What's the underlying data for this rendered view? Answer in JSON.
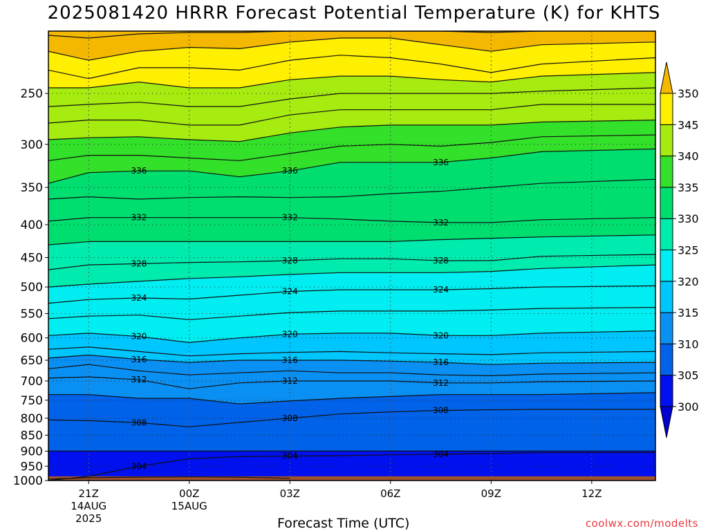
{
  "chart_data": {
    "type": "contour",
    "title": "2025081420 HRRR Forecast Potential Temperature (K) for KHTS",
    "xlabel": "Forecast Time (UTC)",
    "ylabel": "",
    "y_scale": "log-pressure",
    "y_range_hPa": [
      200,
      1000
    ],
    "y_ticks": [
      250,
      300,
      350,
      400,
      450,
      500,
      550,
      600,
      650,
      700,
      750,
      800,
      850,
      900,
      950,
      1000
    ],
    "x_range_hours": [
      -0.2,
      17.9
    ],
    "x_ticks": [
      {
        "hour": 1,
        "label": "21Z",
        "date": "14AUG",
        "year": "2025"
      },
      {
        "hour": 4,
        "label": "00Z",
        "date": "15AUG",
        "year": ""
      },
      {
        "hour": 7,
        "label": "03Z",
        "date": "",
        "year": ""
      },
      {
        "hour": 10,
        "label": "06Z",
        "date": "",
        "year": ""
      },
      {
        "hour": 13,
        "label": "09Z",
        "date": "",
        "year": ""
      },
      {
        "hour": 16,
        "label": "12Z",
        "date": "",
        "year": ""
      }
    ],
    "grid": true,
    "ground_below_hPa": 985,
    "colorbar": {
      "levels": [
        300,
        305,
        310,
        315,
        320,
        325,
        330,
        335,
        340,
        345,
        350
      ],
      "colors": [
        "#0010ee",
        "#0062e8",
        "#0a8ff2",
        "#00c6ff",
        "#00eef2",
        "#00ecae",
        "#00de70",
        "#33e02a",
        "#a6ec10",
        "#ffef00"
      ],
      "under_color": "#0000d0",
      "over_color": "#f5b800"
    },
    "contours": [
      {
        "level": 302,
        "pressure": [
          995,
          990,
          988,
          987,
          988,
          992
        ],
        "label": ""
      },
      {
        "level": 304,
        "pressure": [
          1000,
          985,
          950,
          925,
          918,
          916,
          915,
          912,
          910,
          908,
          905,
          905
        ],
        "label": "304"
      },
      {
        "level": 306,
        "pressure": [
          900,
          900,
          900,
          900,
          900,
          900,
          900,
          900,
          900,
          900,
          900,
          900
        ],
        "label": ""
      },
      {
        "level": 308,
        "pressure": [
          805,
          807,
          813,
          825,
          812,
          800,
          788,
          782,
          778,
          776,
          775,
          775
        ],
        "label": "308"
      },
      {
        "level": 310,
        "pressure": [
          735,
          735,
          745,
          745,
          760,
          752,
          745,
          740,
          735,
          735,
          735,
          730
        ],
        "label": ""
      },
      {
        "level": 312,
        "pressure": [
          693,
          690,
          697,
          720,
          705,
          700,
          700,
          700,
          705,
          705,
          702,
          700
        ],
        "label": "312"
      },
      {
        "level": 314,
        "pressure": [
          670,
          660,
          675,
          685,
          680,
          675,
          680,
          680,
          685,
          687,
          683,
          680
        ],
        "label": ""
      },
      {
        "level": 316,
        "pressure": [
          645,
          638,
          648,
          655,
          650,
          650,
          650,
          652,
          655,
          660,
          657,
          655
        ],
        "label": "316"
      },
      {
        "level": 318,
        "pressure": [
          625,
          620,
          630,
          640,
          635,
          632,
          630,
          633,
          635,
          637,
          633,
          630
        ],
        "label": ""
      },
      {
        "level": 320,
        "pressure": [
          595,
          590,
          597,
          610,
          600,
          592,
          590,
          590,
          595,
          595,
          590,
          585
        ],
        "label": "320"
      },
      {
        "level": 322,
        "pressure": [
          560,
          555,
          553,
          562,
          555,
          548,
          545,
          545,
          545,
          543,
          540,
          538
        ],
        "label": ""
      },
      {
        "level": 324,
        "pressure": [
          530,
          523,
          520,
          522,
          515,
          508,
          505,
          505,
          505,
          503,
          500,
          498
        ],
        "label": "324"
      },
      {
        "level": 326,
        "pressure": [
          500,
          495,
          490,
          485,
          482,
          478,
          475,
          475,
          475,
          473,
          468,
          462
        ],
        "label": ""
      },
      {
        "level": 328,
        "pressure": [
          470,
          462,
          460,
          458,
          457,
          455,
          452,
          452,
          455,
          455,
          448,
          445
        ],
        "label": "328"
      },
      {
        "level": 330,
        "pressure": [
          430,
          425,
          425,
          425,
          425,
          425,
          425,
          425,
          422,
          420,
          418,
          415
        ],
        "label": ""
      },
      {
        "level": 332,
        "pressure": [
          395,
          390,
          390,
          390,
          390,
          390,
          392,
          395,
          397,
          397,
          393,
          390
        ],
        "label": "332"
      },
      {
        "level": 334,
        "pressure": [
          365,
          362,
          365,
          363,
          362,
          363,
          362,
          358,
          355,
          350,
          345,
          340
        ],
        "label": ""
      },
      {
        "level": 336,
        "pressure": [
          345,
          332,
          330,
          330,
          337,
          330,
          320,
          320,
          320,
          315,
          308,
          305
        ],
        "label": "336"
      },
      {
        "level": 338,
        "pressure": [
          318,
          312,
          312,
          315,
          318,
          310,
          302,
          300,
          302,
          298,
          292,
          290
        ],
        "label": ""
      },
      {
        "level": 340,
        "pressure": [
          295,
          293,
          292,
          295,
          297,
          288,
          282,
          280,
          280,
          280,
          277,
          275
        ],
        "label": ""
      },
      {
        "level": 342,
        "pressure": [
          278,
          275,
          275,
          280,
          280,
          270,
          265,
          265,
          265,
          265,
          260,
          260
        ],
        "label": ""
      },
      {
        "level": 344,
        "pressure": [
          262,
          260,
          258,
          262,
          262,
          255,
          250,
          250,
          250,
          250,
          248,
          245
        ],
        "label": ""
      },
      {
        "level": 346,
        "pressure": [
          245,
          245,
          240,
          245,
          245,
          238,
          235,
          235,
          238,
          240,
          235,
          232
        ],
        "label": ""
      },
      {
        "level": 348,
        "pressure": [
          230,
          237,
          228,
          228,
          230,
          222,
          218,
          220,
          225,
          232,
          225,
          220
        ],
        "label": ""
      },
      {
        "level": 350,
        "pressure": [
          215,
          222,
          215,
          212,
          213,
          208,
          205,
          205,
          210,
          215,
          210,
          208
        ],
        "label": ""
      },
      {
        "level": 352,
        "pressure": [
          203,
          205,
          202,
          201,
          201,
          200,
          200,
          200,
          200,
          201,
          200,
          200
        ],
        "label": ""
      }
    ],
    "contour_hours": [
      -0.2,
      1,
      2.5,
      4,
      5.5,
      7,
      8.5,
      10,
      11.5,
      13,
      14.5,
      17.9
    ]
  },
  "page": {
    "title": "2025081420 HRRR Forecast Potential Temperature (K) for KHTS",
    "xlabel": "Forecast Time (UTC)",
    "footer": "coolwx.com/modelts"
  }
}
